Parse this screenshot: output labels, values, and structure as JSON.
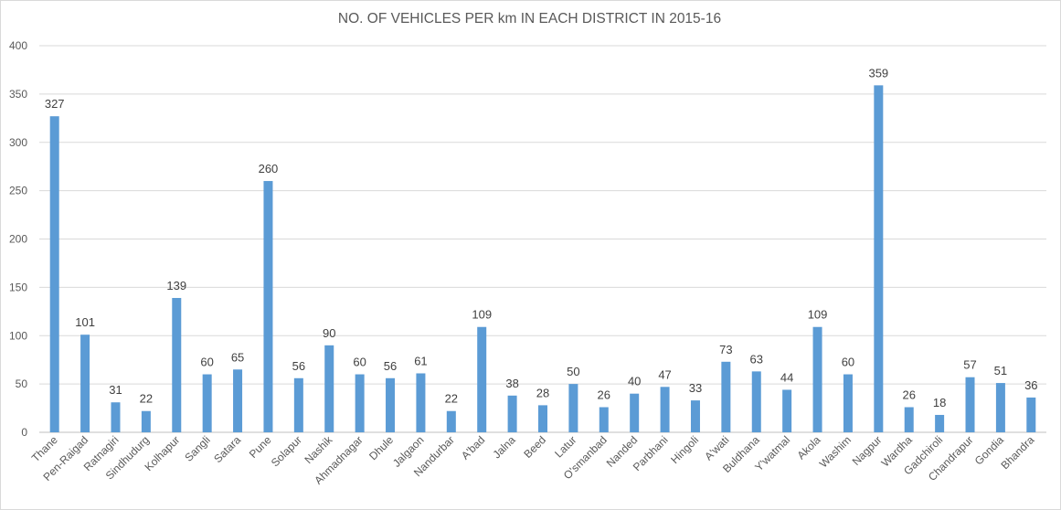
{
  "chart_data": {
    "type": "bar",
    "title": "NO. OF VEHICLES PER km IN EACH DISTRICT IN 2015-16",
    "xlabel": "",
    "ylabel": "",
    "ylim": [
      0,
      400
    ],
    "yticks": [
      "0",
      "50",
      "100",
      "150",
      "200",
      "250",
      "300",
      "350",
      "400"
    ],
    "grid": true,
    "legend": "none",
    "bar_color": "#5b9bd5",
    "categories": [
      "Thane",
      "Pen-Raigad",
      "Ratnagiri",
      "Sindhudurg",
      "Kolhapur",
      "Sangli",
      "Satara",
      "Pune",
      "Solapur",
      "Nashik",
      "Ahmadnagar",
      "Dhule",
      "Jalgaon",
      "Nandurbar",
      "A'bad",
      "Jalna",
      "Beed",
      "Latur",
      "O'smanbad",
      "Nanded",
      "Parbhani",
      "Hingoli",
      "A'wati",
      "Buldhana",
      "Y'watmal",
      "Akola",
      "Washim",
      "Nagpur",
      "Wardha",
      "Gadchiroli",
      "Chandrapur",
      "Gondia",
      "Bhandra"
    ],
    "values": [
      327,
      101,
      31,
      22,
      139,
      60,
      65,
      260,
      56,
      90,
      60,
      56,
      61,
      22,
      109,
      38,
      28,
      50,
      26,
      40,
      47,
      33,
      73,
      63,
      44,
      109,
      60,
      359,
      26,
      18,
      57,
      51,
      36
    ]
  }
}
